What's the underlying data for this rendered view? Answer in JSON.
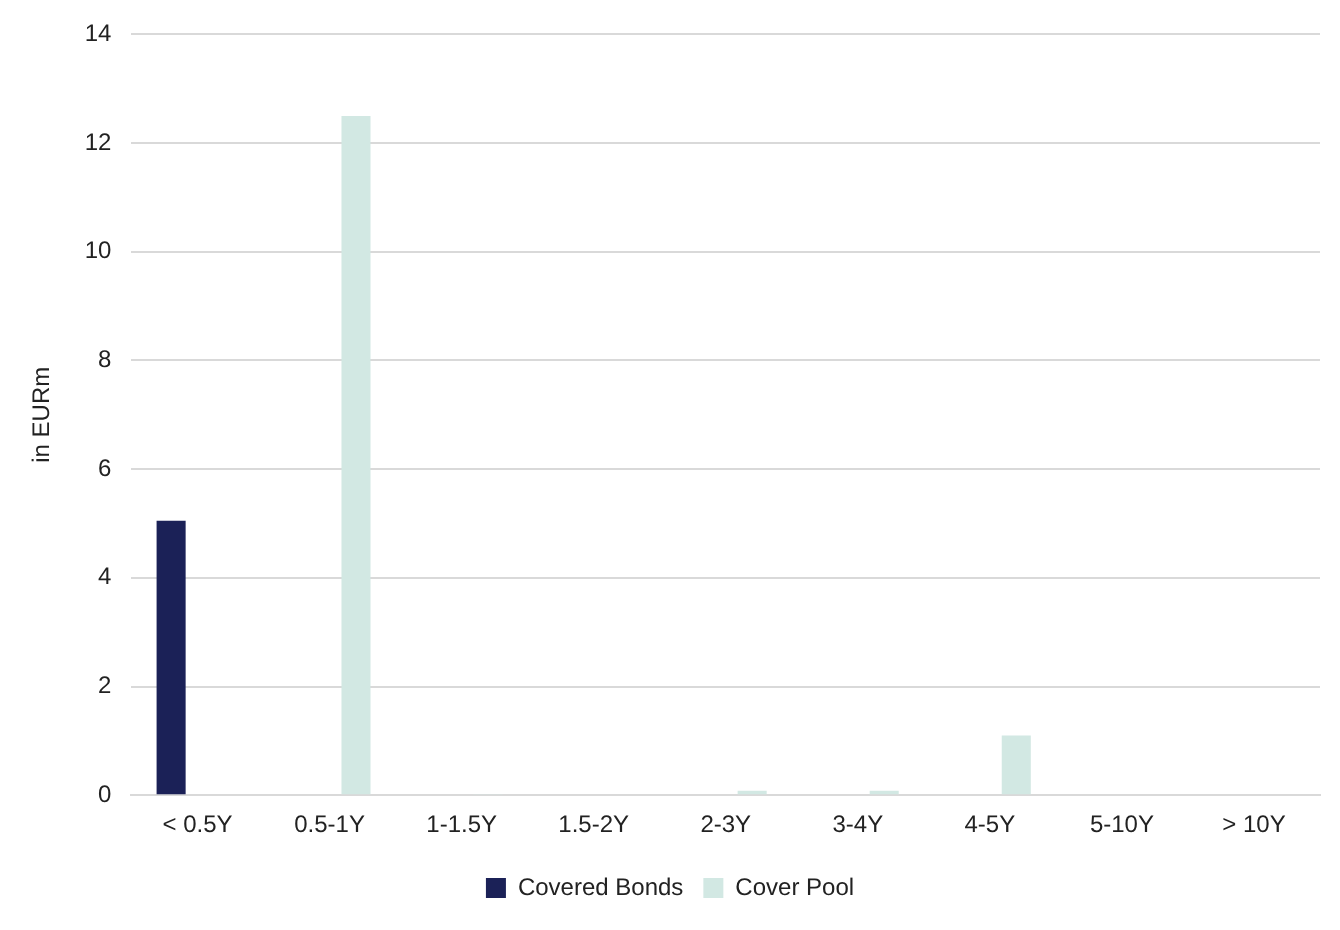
{
  "chart_data": {
    "type": "bar",
    "ylabel": "in EURm",
    "categories": [
      "< 0.5Y",
      "0.5-1Y",
      "1-1.5Y",
      "1.5-2Y",
      "2-3Y",
      "3-4Y",
      "4-5Y",
      "5-10Y",
      "> 10Y"
    ],
    "series": [
      {
        "name": "Covered Bonds",
        "color": "#1b2157",
        "values": [
          5.05,
          0,
          0,
          0,
          0,
          0,
          0,
          0,
          0
        ]
      },
      {
        "name": "Cover Pool",
        "color": "#d2e8e3",
        "values": [
          0,
          12.5,
          0.02,
          0,
          0.08,
          0.08,
          1.1,
          0,
          0
        ]
      }
    ],
    "ylim": [
      0,
      14
    ],
    "yticks": [
      0,
      2,
      4,
      6,
      8,
      10,
      12,
      14
    ],
    "grid": "y",
    "legend": "bottom"
  }
}
